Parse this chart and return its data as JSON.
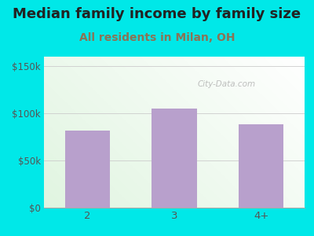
{
  "title": "Median family income by family size",
  "subtitle": "All residents in Milan, OH",
  "categories": [
    "2",
    "3",
    "4+"
  ],
  "values": [
    82000,
    105000,
    88000
  ],
  "bar_color": "#b8a0cc",
  "background_color": "#00e8e8",
  "yticks": [
    0,
    50000,
    100000,
    150000
  ],
  "ytick_labels": [
    "$0",
    "$50k",
    "$100k",
    "$150k"
  ],
  "ylim": [
    0,
    160000
  ],
  "title_fontsize": 13,
  "subtitle_fontsize": 10,
  "title_color": "#222222",
  "subtitle_color": "#8B7355",
  "tick_color": "#555555",
  "watermark": "City-Data.com"
}
